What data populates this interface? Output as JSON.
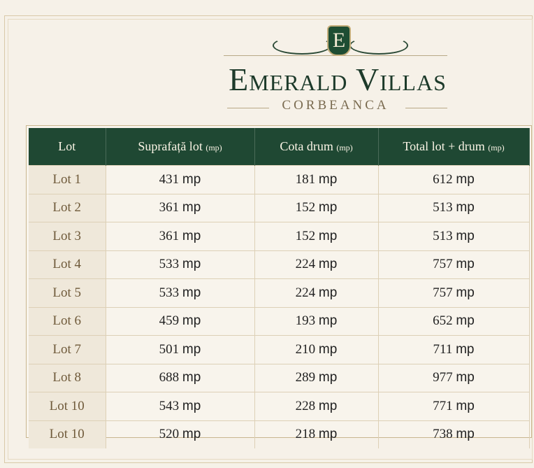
{
  "brand": {
    "emblem_letter": "E",
    "title": "Emerald Villas",
    "subtitle": "CORBEANCA"
  },
  "table": {
    "headers": [
      {
        "label": "Lot",
        "unit": ""
      },
      {
        "label": "Suprafață lot",
        "unit": "(mp)"
      },
      {
        "label": "Cota drum",
        "unit": "(mp)"
      },
      {
        "label": "Total lot + drum",
        "unit": "(mp)"
      }
    ],
    "unit": "mp",
    "rows": [
      [
        "Lot 1",
        "431",
        "181",
        "612"
      ],
      [
        "Lot 2",
        "361",
        "152",
        "513"
      ],
      [
        "Lot 3",
        "361",
        "152",
        "513"
      ],
      [
        "Lot 4",
        "533",
        "224",
        "757"
      ],
      [
        "Lot 5",
        "533",
        "224",
        "757"
      ],
      [
        "Lot 6",
        "459",
        "193",
        "652"
      ],
      [
        "Lot 7",
        "501",
        "210",
        "711"
      ],
      [
        "Lot 8",
        "688",
        "289",
        "977"
      ],
      [
        "Lot 10",
        "543",
        "228",
        "771"
      ],
      [
        "Lot 10",
        "520",
        "218",
        "738"
      ]
    ]
  },
  "colors": {
    "header_bg": "#1f4833",
    "title": "#1d3a2a",
    "accent_gold": "#c3ad7a"
  }
}
